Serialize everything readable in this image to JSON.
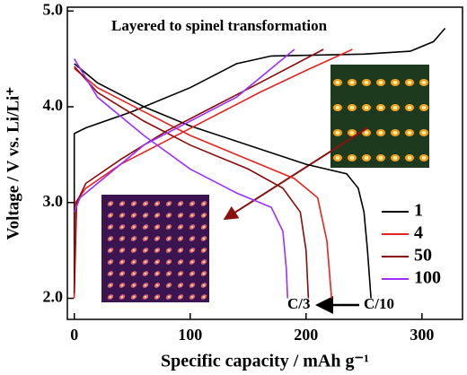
{
  "chart_data": {
    "type": "line",
    "annotations": [
      "Layered to spinel transformation",
      "C/3",
      "C/10"
    ],
    "xlabel": "Specific capacity / mAh g⁻¹",
    "ylabel": "Voltage / V vs. Li/Li⁺",
    "xlim": [
      -6,
      335
    ],
    "ylim": [
      1.78,
      5.04
    ],
    "xticks": [
      0,
      100,
      200,
      300
    ],
    "yticks": [
      {
        "value": 2,
        "label": "2.0"
      },
      {
        "value": 3,
        "label": "3.0"
      },
      {
        "value": 4,
        "label": "4.0"
      },
      {
        "value": 5,
        "label": "5.0"
      }
    ],
    "legend": "lower right",
    "series": [
      {
        "name": "1",
        "color": "#000000",
        "x": [
          0,
          0,
          10,
          50,
          100,
          140,
          170,
          250,
          290,
          310,
          320,
          null,
          0,
          20,
          60,
          100,
          150,
          200,
          235,
          245,
          250,
          253,
          256
        ],
        "values": [
          2.0,
          3.72,
          3.78,
          3.95,
          4.2,
          4.45,
          4.53,
          4.55,
          4.58,
          4.68,
          4.82,
          null,
          4.45,
          4.25,
          4.0,
          3.8,
          3.6,
          3.4,
          3.3,
          3.15,
          2.9,
          2.5,
          2.0
        ]
      },
      {
        "name": "4",
        "color": "#e8231f",
        "x": [
          0,
          1,
          10,
          40,
          80,
          120,
          160,
          200,
          240,
          null,
          0,
          20,
          60,
          100,
          150,
          190,
          210,
          218,
          222
        ],
        "values": [
          2.0,
          3.0,
          3.15,
          3.4,
          3.65,
          3.9,
          4.15,
          4.38,
          4.6,
          null,
          4.4,
          4.2,
          3.95,
          3.7,
          3.45,
          3.25,
          3.05,
          2.6,
          2.0
        ]
      },
      {
        "name": "50",
        "color": "#8b0a0a",
        "x": [
          0,
          2,
          10,
          40,
          80,
          120,
          160,
          215,
          null,
          0,
          20,
          60,
          100,
          150,
          180,
          195,
          200,
          202
        ],
        "values": [
          2.05,
          3.0,
          3.2,
          3.45,
          3.75,
          4.0,
          4.25,
          4.6,
          null,
          4.42,
          4.15,
          3.85,
          3.6,
          3.35,
          3.15,
          2.9,
          2.5,
          2.0
        ]
      },
      {
        "name": "100",
        "color": "#9b30ff",
        "x": [
          0,
          5,
          30,
          60,
          100,
          140,
          190,
          null,
          0,
          20,
          60,
          100,
          140,
          170,
          180,
          183,
          184
        ],
        "values": [
          2.9,
          3.05,
          3.3,
          3.6,
          3.85,
          4.1,
          4.6,
          null,
          4.5,
          4.1,
          3.7,
          3.35,
          3.1,
          2.95,
          2.7,
          2.3,
          2.0
        ]
      }
    ]
  }
}
